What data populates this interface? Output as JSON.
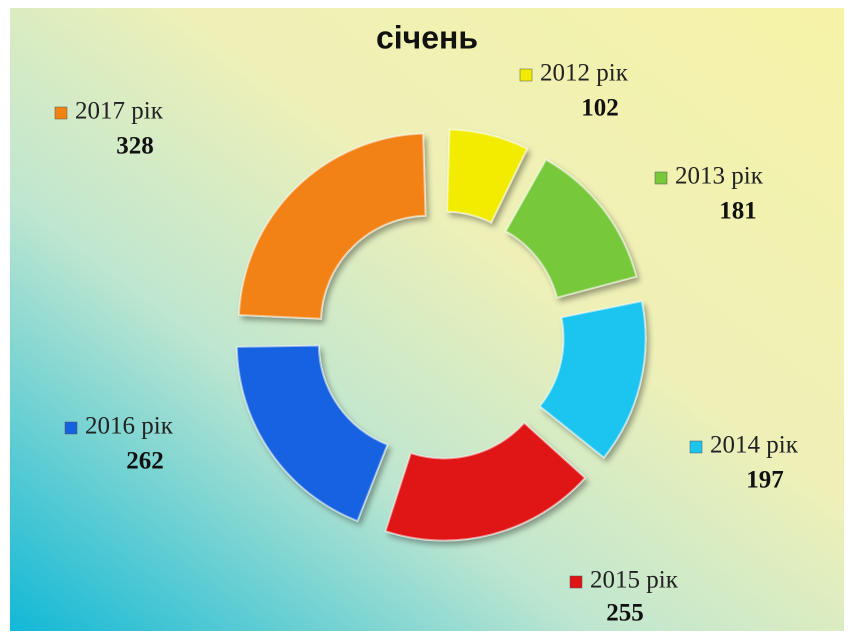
{
  "chart_data": {
    "type": "doughnut",
    "title": "січень",
    "categories": [
      "2012 рік",
      "2013 рік",
      "2014 рік",
      "2015 рік",
      "2016 рік",
      "2017 рік"
    ],
    "values": [
      102,
      181,
      197,
      255,
      262,
      328
    ],
    "colors": [
      "#f2ec00",
      "#78c83a",
      "#1cc4f0",
      "#e01414",
      "#1462e0",
      "#f28214"
    ]
  }
}
